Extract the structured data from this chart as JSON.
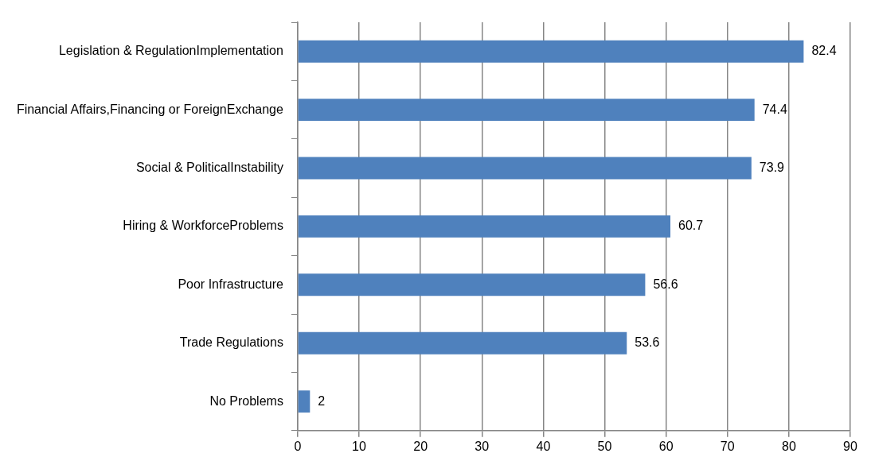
{
  "chart_data": {
    "type": "bar",
    "orientation": "horizontal",
    "categories": [
      "Legislation & RegulationImplementation",
      "Financial Affairs,Financing or ForeignExchange",
      "Social & PoliticalInstability",
      "Hiring & WorkforceProblems",
      "Poor Infrastructure",
      "Trade Regulations",
      "No Problems"
    ],
    "values": [
      82.4,
      74.4,
      73.9,
      60.7,
      56.6,
      53.6,
      2
    ],
    "color": "#4f81bd",
    "xlim": [
      0,
      90
    ],
    "xticks": [
      0,
      10,
      20,
      30,
      40,
      50,
      60,
      70,
      80,
      90
    ],
    "grid": "x",
    "data_labels": true,
    "legend": false
  }
}
